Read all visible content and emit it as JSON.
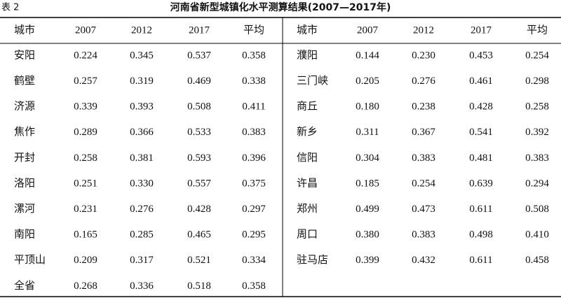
{
  "header": {
    "label": "表 2",
    "title": "河南省新型城镇化水平测算结果(2007—2017年)"
  },
  "table": {
    "left": {
      "columns": [
        "城市",
        "2007",
        "2012",
        "2017",
        "平均"
      ],
      "rows": [
        [
          "安阳",
          "0.224",
          "0.345",
          "0.537",
          "0.358"
        ],
        [
          "鹤壁",
          "0.257",
          "0.319",
          "0.469",
          "0.338"
        ],
        [
          "济源",
          "0.339",
          "0.393",
          "0.508",
          "0.411"
        ],
        [
          "焦作",
          "0.289",
          "0.366",
          "0.533",
          "0.383"
        ],
        [
          "开封",
          "0.258",
          "0.381",
          "0.593",
          "0.396"
        ],
        [
          "洛阳",
          "0.251",
          "0.330",
          "0.557",
          "0.375"
        ],
        [
          "漯河",
          "0.231",
          "0.276",
          "0.428",
          "0.297"
        ],
        [
          "南阳",
          "0.165",
          "0.285",
          "0.465",
          "0.295"
        ],
        [
          "平顶山",
          "0.209",
          "0.317",
          "0.521",
          "0.334"
        ],
        [
          "全省",
          "0.268",
          "0.336",
          "0.518",
          "0.358"
        ]
      ]
    },
    "right": {
      "columns": [
        "城市",
        "2007",
        "2012",
        "2017",
        "平均"
      ],
      "rows": [
        [
          "濮阳",
          "0.144",
          "0.230",
          "0.453",
          "0.254"
        ],
        [
          "三门峡",
          "0.205",
          "0.276",
          "0.461",
          "0.298"
        ],
        [
          "商丘",
          "0.180",
          "0.238",
          "0.428",
          "0.258"
        ],
        [
          "新乡",
          "0.311",
          "0.367",
          "0.541",
          "0.392"
        ],
        [
          "信阳",
          "0.304",
          "0.383",
          "0.481",
          "0.383"
        ],
        [
          "许昌",
          "0.185",
          "0.254",
          "0.639",
          "0.294"
        ],
        [
          "郑州",
          "0.499",
          "0.473",
          "0.611",
          "0.508"
        ],
        [
          "周口",
          "0.380",
          "0.383",
          "0.498",
          "0.410"
        ],
        [
          "驻马店",
          "0.399",
          "0.432",
          "0.611",
          "0.458"
        ]
      ]
    }
  }
}
